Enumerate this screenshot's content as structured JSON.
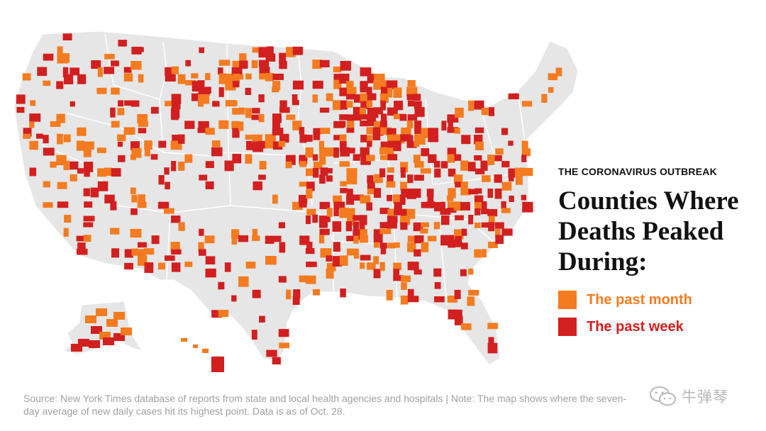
{
  "header": {
    "kicker": "THE CORONAVIRUS OUTBREAK",
    "title": "Counties Where Deaths Peaked During:"
  },
  "legend": [
    {
      "label": "The past month",
      "color": "#f47b20"
    },
    {
      "label": "The past week",
      "color": "#d21f1f"
    }
  ],
  "map": {
    "subject": "United States counties",
    "base_color": "#e6e6e6",
    "border_color": "#ffffff"
  },
  "footer": {
    "source": "Source: New York Times database of reports from state and local health agencies and hospitals | Note: The map shows where the seven-day average of new daily cases hit its highest point. Data is as of Oct. 28."
  },
  "watermark": {
    "icon": "wechat-icon",
    "text": "牛弹琴"
  }
}
